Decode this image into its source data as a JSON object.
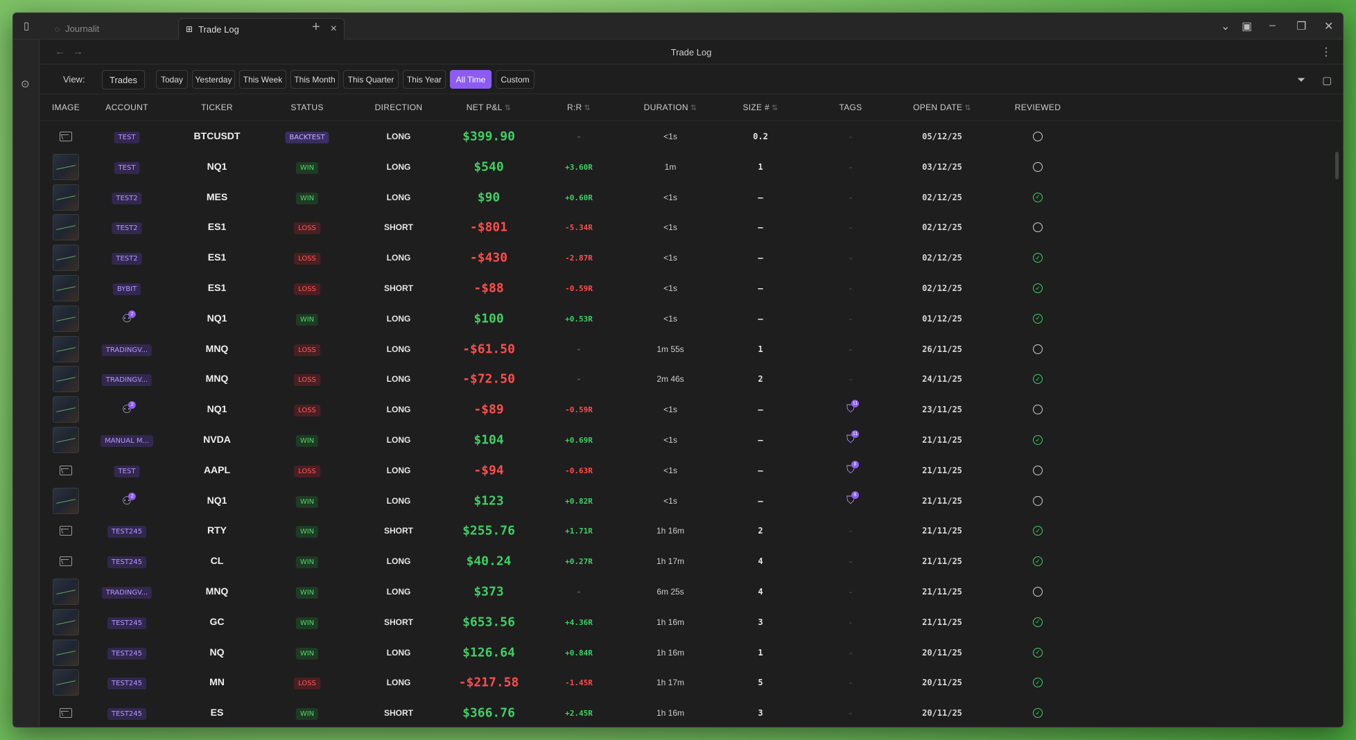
{
  "tabs": [
    {
      "label": "Journalit",
      "active": false
    },
    {
      "label": "Trade Log",
      "active": true
    }
  ],
  "page_title": "Trade Log",
  "filter": {
    "view_label": "View:",
    "view_value": "Trades",
    "periods": [
      "Today",
      "Yesterday",
      "This Week",
      "This Month",
      "This Quarter",
      "This Year",
      "All Time",
      "Custom"
    ],
    "active_period": "All Time"
  },
  "columns": [
    "IMAGE",
    "ACCOUNT",
    "TICKER",
    "STATUS",
    "DIRECTION",
    "NET P&L",
    "R:R",
    "DURATION",
    "SIZE #",
    "TAGS",
    "OPEN DATE",
    "REVIEWED"
  ],
  "sortable_columns": [
    "NET P&L",
    "R:R",
    "DURATION",
    "SIZE #",
    "OPEN DATE"
  ],
  "rows": [
    {
      "image": "none",
      "account": "TEST",
      "ticker": "BTCUSDT",
      "status": "BACKTEST",
      "direction": "LONG",
      "pnl": "$399.90",
      "rr": "-",
      "duration": "<1s",
      "size": "0.2",
      "tags": "-",
      "date": "05/12/25",
      "reviewed": false
    },
    {
      "image": "thumb",
      "account": "TEST",
      "ticker": "NQ1",
      "status": "WIN",
      "direction": "LONG",
      "pnl": "$540",
      "rr": "+3.60R",
      "duration": "1m",
      "size": "1",
      "tags": "-",
      "date": "03/12/25",
      "reviewed": false
    },
    {
      "image": "thumb",
      "account": "TEST2",
      "ticker": "MES",
      "status": "WIN",
      "direction": "LONG",
      "pnl": "$90",
      "rr": "+0.60R",
      "duration": "<1s",
      "size": "–",
      "tags": "-",
      "date": "02/12/25",
      "reviewed": true
    },
    {
      "image": "thumb",
      "account": "TEST2",
      "ticker": "ES1",
      "status": "LOSS",
      "direction": "SHORT",
      "pnl": "-$801",
      "rr": "-5.34R",
      "duration": "<1s",
      "size": "–",
      "tags": "-",
      "date": "02/12/25",
      "reviewed": false
    },
    {
      "image": "thumb",
      "account": "TEST2",
      "ticker": "ES1",
      "status": "LOSS",
      "direction": "LONG",
      "pnl": "-$430",
      "rr": "-2.87R",
      "duration": "<1s",
      "size": "–",
      "tags": "-",
      "date": "02/12/25",
      "reviewed": true
    },
    {
      "image": "thumb",
      "account": "BYBIT",
      "ticker": "ES1",
      "status": "LOSS",
      "direction": "SHORT",
      "pnl": "-$88",
      "rr": "-0.59R",
      "duration": "<1s",
      "size": "–",
      "tags": "-",
      "date": "02/12/25",
      "reviewed": true
    },
    {
      "image": "thumb",
      "account": "multi:2",
      "ticker": "NQ1",
      "status": "WIN",
      "direction": "LONG",
      "pnl": "$100",
      "rr": "+0.53R",
      "duration": "<1s",
      "size": "–",
      "tags": "-",
      "date": "01/12/25",
      "reviewed": true
    },
    {
      "image": "thumb",
      "account": "TRADINGV...",
      "ticker": "MNQ",
      "status": "LOSS",
      "direction": "LONG",
      "pnl": "-$61.50",
      "rr": "-",
      "duration": "1m 55s",
      "size": "1",
      "tags": "-",
      "date": "26/11/25",
      "reviewed": false
    },
    {
      "image": "thumb",
      "account": "TRADINGV...",
      "ticker": "MNQ",
      "status": "LOSS",
      "direction": "LONG",
      "pnl": "-$72.50",
      "rr": "-",
      "duration": "2m 46s",
      "size": "2",
      "tags": "-",
      "date": "24/11/25",
      "reviewed": true
    },
    {
      "image": "thumb",
      "account": "multi:2",
      "ticker": "NQ1",
      "status": "LOSS",
      "direction": "LONG",
      "pnl": "-$89",
      "rr": "-0.59R",
      "duration": "<1s",
      "size": "–",
      "tags": "tag:11",
      "date": "23/11/25",
      "reviewed": false
    },
    {
      "image": "thumb",
      "account": "MANUAL M...",
      "ticker": "NVDA",
      "status": "WIN",
      "direction": "LONG",
      "pnl": "$104",
      "rr": "+0.69R",
      "duration": "<1s",
      "size": "–",
      "tags": "tag:11",
      "date": "21/11/25",
      "reviewed": true
    },
    {
      "image": "none",
      "account": "TEST",
      "ticker": "AAPL",
      "status": "LOSS",
      "direction": "LONG",
      "pnl": "-$94",
      "rr": "-0.63R",
      "duration": "<1s",
      "size": "–",
      "tags": "tag:8",
      "date": "21/11/25",
      "reviewed": false
    },
    {
      "image": "thumb",
      "account": "multi:2",
      "ticker": "NQ1",
      "status": "WIN",
      "direction": "LONG",
      "pnl": "$123",
      "rr": "+0.82R",
      "duration": "<1s",
      "size": "–",
      "tags": "tag:8",
      "date": "21/11/25",
      "reviewed": false
    },
    {
      "image": "none",
      "account": "TEST245",
      "ticker": "RTY",
      "status": "WIN",
      "direction": "SHORT",
      "pnl": "$255.76",
      "rr": "+1.71R",
      "duration": "1h 16m",
      "size": "2",
      "tags": "-",
      "date": "21/11/25",
      "reviewed": true
    },
    {
      "image": "none",
      "account": "TEST245",
      "ticker": "CL",
      "status": "WIN",
      "direction": "LONG",
      "pnl": "$40.24",
      "rr": "+0.27R",
      "duration": "1h 17m",
      "size": "4",
      "tags": "-",
      "date": "21/11/25",
      "reviewed": true
    },
    {
      "image": "thumb",
      "account": "TRADINGV...",
      "ticker": "MNQ",
      "status": "WIN",
      "direction": "LONG",
      "pnl": "$373",
      "rr": "-",
      "duration": "6m 25s",
      "size": "4",
      "tags": "-",
      "date": "21/11/25",
      "reviewed": false
    },
    {
      "image": "thumb",
      "account": "TEST245",
      "ticker": "GC",
      "status": "WIN",
      "direction": "SHORT",
      "pnl": "$653.56",
      "rr": "+4.36R",
      "duration": "1h 16m",
      "size": "3",
      "tags": "-",
      "date": "21/11/25",
      "reviewed": true
    },
    {
      "image": "thumb",
      "account": "TEST245",
      "ticker": "NQ",
      "status": "WIN",
      "direction": "LONG",
      "pnl": "$126.64",
      "rr": "+0.84R",
      "duration": "1h 16m",
      "size": "1",
      "tags": "-",
      "date": "20/11/25",
      "reviewed": true
    },
    {
      "image": "thumb",
      "account": "TEST245",
      "ticker": "MN",
      "status": "LOSS",
      "direction": "LONG",
      "pnl": "-$217.58",
      "rr": "-1.45R",
      "duration": "1h 17m",
      "size": "5",
      "tags": "-",
      "date": "20/11/25",
      "reviewed": true
    },
    {
      "image": "none",
      "account": "TEST245",
      "ticker": "ES",
      "status": "WIN",
      "direction": "SHORT",
      "pnl": "$366.76",
      "rr": "+2.45R",
      "duration": "1h 16m",
      "size": "3",
      "tags": "-",
      "date": "20/11/25",
      "reviewed": true
    }
  ]
}
